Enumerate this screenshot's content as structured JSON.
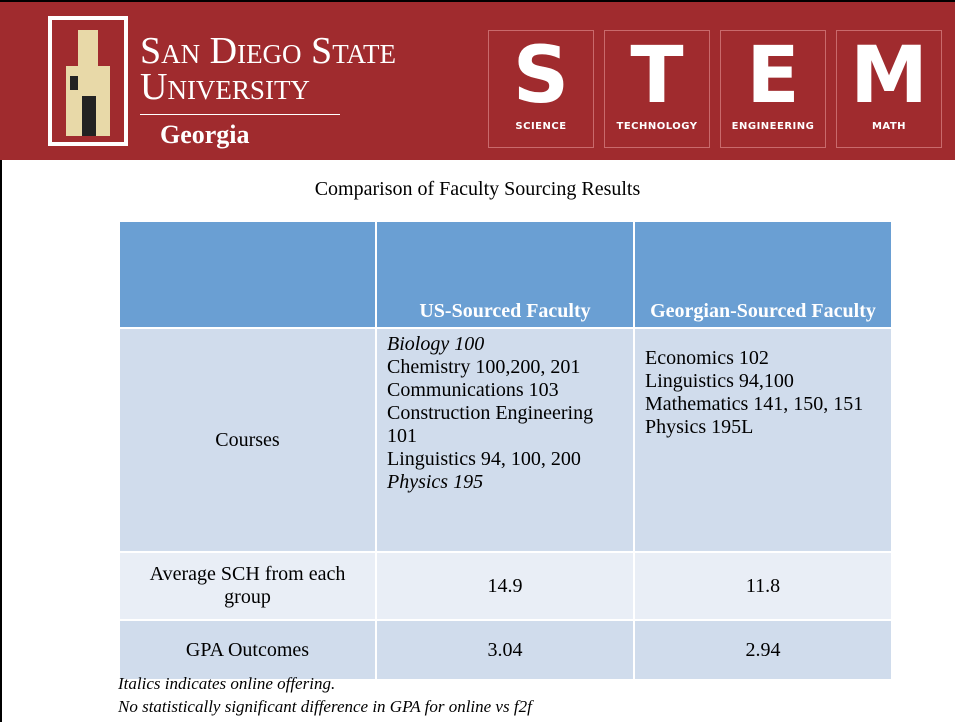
{
  "header": {
    "university": [
      "San Diego State",
      "University"
    ],
    "campus": "Georgia",
    "stem": [
      {
        "letter": "S",
        "word": "SCIENCE"
      },
      {
        "letter": "T",
        "word": "TECHNOLOGY"
      },
      {
        "letter": "E",
        "word": "ENGINEERING"
      },
      {
        "letter": "M",
        "word": "MATH"
      }
    ]
  },
  "title": "Comparison of Faculty Sourcing Results",
  "table": {
    "columns": [
      "US-Sourced Faculty",
      "Georgian-Sourced Faculty"
    ],
    "rows": [
      {
        "label": "Courses",
        "cells": [
          [
            {
              "text": "Biology 100",
              "online": true
            },
            {
              "text": "Chemistry 100,200, 201",
              "online": false
            },
            {
              "text": "Communications 103",
              "online": false
            },
            {
              "text": "Construction Engineering 101",
              "online": false
            },
            {
              "text": "Linguistics 94, 100, 200",
              "online": false
            },
            {
              "text": "Physics 195",
              "online": true
            }
          ],
          [
            {
              "text": "Economics 102",
              "online": false
            },
            {
              "text": "Linguistics 94,100",
              "online": false
            },
            {
              "text": "Mathematics 141, 150, 151",
              "online": false
            },
            {
              "text": "Physics 195L",
              "online": false
            }
          ]
        ]
      },
      {
        "label": "Average SCH from each group",
        "cells": [
          "14.9",
          "11.8"
        ]
      },
      {
        "label": "GPA Outcomes",
        "cells": [
          "3.04",
          "2.94"
        ]
      }
    ]
  },
  "notes": [
    "Italics indicates online offering.",
    "No statistically significant difference in GPA for online vs f2f"
  ]
}
